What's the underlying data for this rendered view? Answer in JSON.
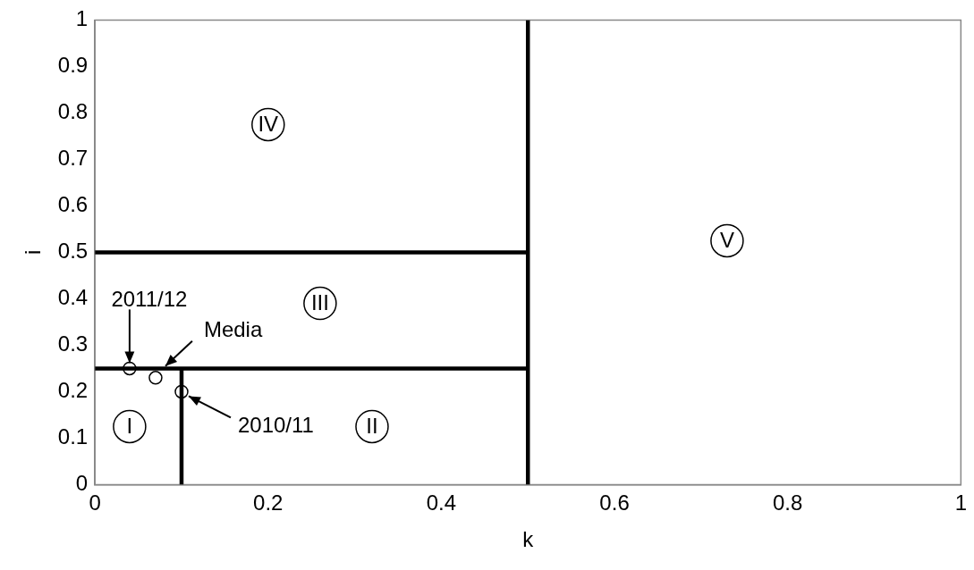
{
  "chart_data": {
    "type": "scatter",
    "xlabel": "k",
    "ylabel": "i",
    "xlim": [
      0,
      1
    ],
    "xticks": [
      0,
      0.2,
      0.4,
      0.6,
      0.8,
      1
    ],
    "ylim": [
      0,
      1
    ],
    "yticks": [
      0,
      0.1,
      0.2,
      0.3,
      0.4,
      0.5,
      0.6,
      0.7,
      0.8,
      0.9,
      1
    ],
    "grid": false,
    "legend": false,
    "marker": "circle",
    "series": [
      {
        "type": "scatter",
        "color": "#000000",
        "x": [
          0.04,
          0.07,
          0.1
        ],
        "values": [
          0.25,
          0.23,
          0.2
        ]
      },
      {
        "type": "line",
        "marker": "none",
        "color": "#000000",
        "x": [
          0.5,
          0.5
        ],
        "values": [
          0,
          1
        ]
      },
      {
        "type": "line",
        "marker": "none",
        "color": "#000000",
        "x": [
          0,
          0.5
        ],
        "values": [
          0.5,
          0.5
        ]
      },
      {
        "type": "line",
        "marker": "none",
        "color": "#000000",
        "x": [
          0,
          0.5
        ],
        "values": [
          0.25,
          0.25
        ]
      },
      {
        "type": "line",
        "marker": "none",
        "color": "#000000",
        "x": [
          0.1,
          0.1
        ],
        "values": [
          0,
          0.25
        ]
      }
    ],
    "annotations": [
      {
        "text": "2011/12",
        "x": 0.04,
        "y": 0.25
      },
      {
        "text": "Media",
        "x": 0.07,
        "y": 0.23
      },
      {
        "text": "2010/11",
        "x": 0.1,
        "y": 0.2
      },
      {
        "text": "I",
        "x": 0.04,
        "y": 0.125
      },
      {
        "text": "II",
        "x": 0.32,
        "y": 0.125
      },
      {
        "text": "III",
        "x": 0.26,
        "y": 0.39
      },
      {
        "text": "IV",
        "x": 0.2,
        "y": 0.775
      },
      {
        "text": "V",
        "x": 0.73,
        "y": 0.525
      }
    ]
  }
}
